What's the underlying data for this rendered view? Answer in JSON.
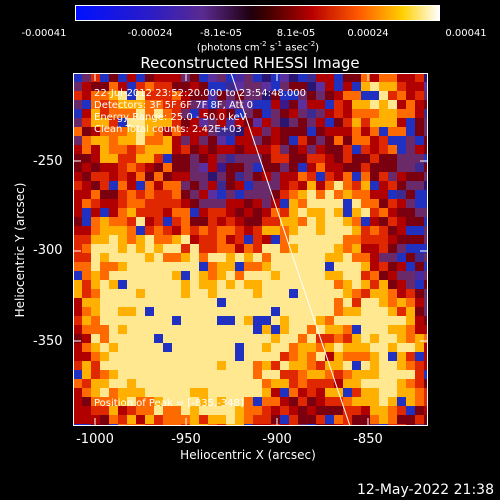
{
  "colorbar": {
    "ticks": [
      "-0.00041",
      "-0.00024",
      "-8.1e-05",
      "8.1e-05",
      "0.00024",
      "0.00041"
    ],
    "units_text": "(photons cm",
    "units_exp1": "-2",
    "units_mid": " s",
    "units_exp2": "-1",
    "units_mid2": " asec",
    "units_exp3": "-2",
    "units_end": ")"
  },
  "title": "Reconstructed RHESSI Image",
  "info": {
    "time": "22-Jul-2012 23:52:20.000 to 23:54:48.000",
    "detectors": "Detectors: 3F 5F 6F 7F 8F, Att 0",
    "energy": "Energy Range: 25.0 - 50.0 keV",
    "clean": "Clean     Total counts: 2.42E+03"
  },
  "peak": "Position of Peak = [-835,-348]",
  "axes": {
    "xlabel": "Heliocentric X (arcsec)",
    "ylabel": "Heliocentric Y (arcsec)",
    "xticks": [
      "-1000",
      "-950",
      "-900",
      "-850"
    ],
    "yticks": [
      "-250",
      "-300",
      "-350"
    ]
  },
  "timestamp": "12-May-2022 21:38"
}
